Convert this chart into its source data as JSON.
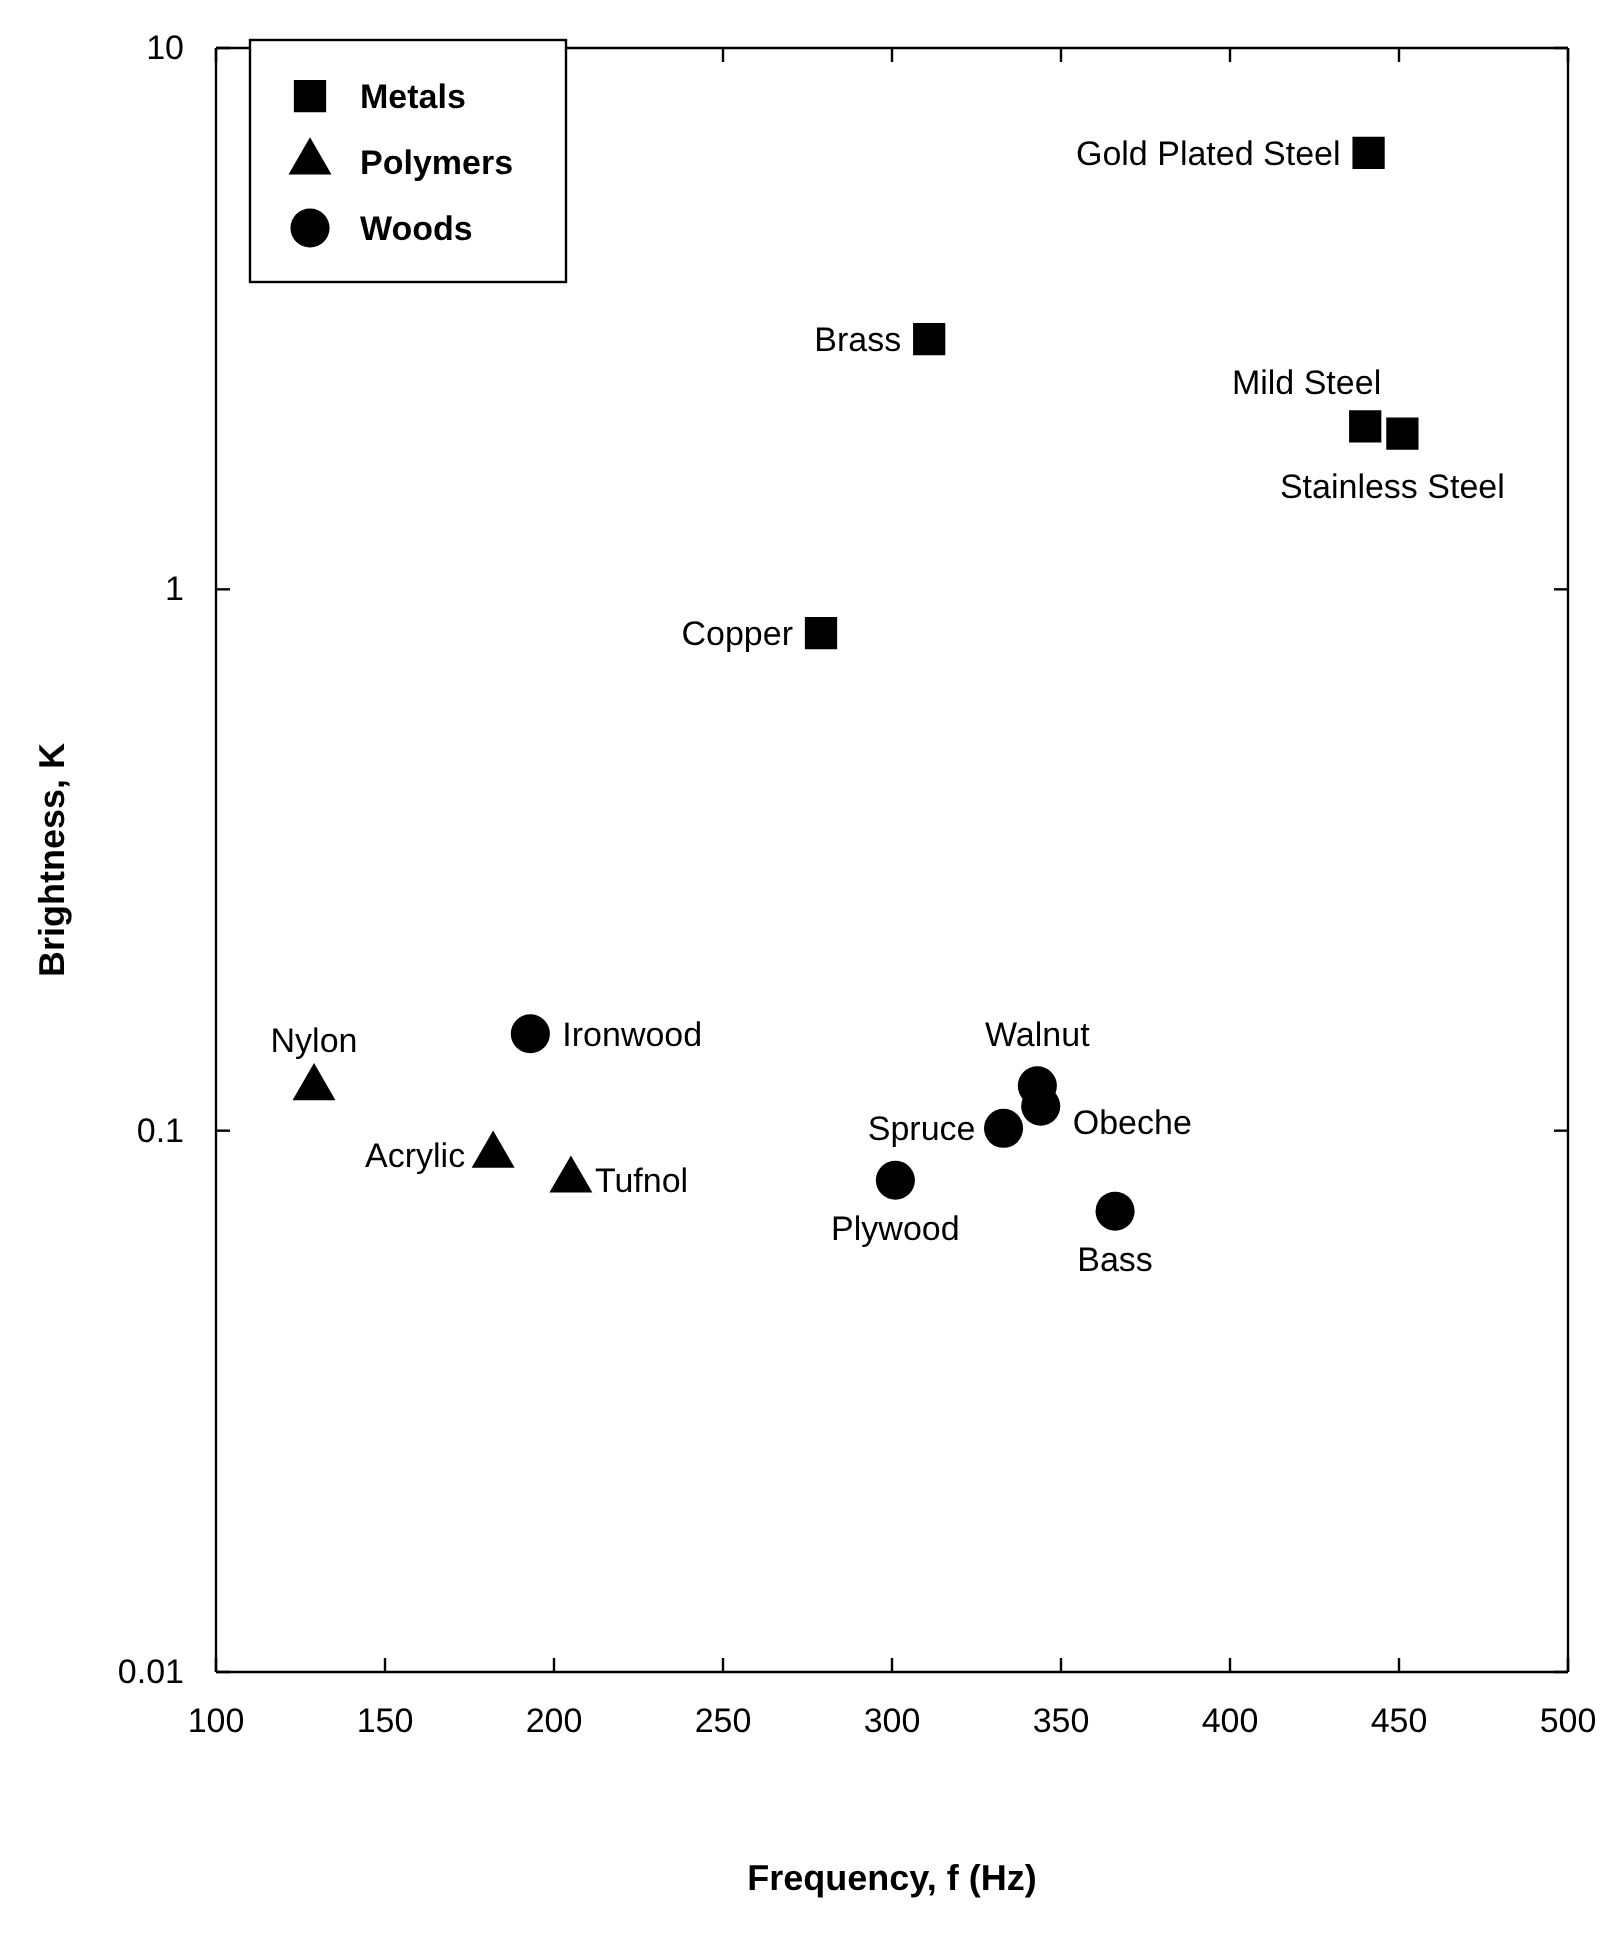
{
  "chart_data": {
    "type": "scatter",
    "xlabel": "Frequency, f (Hz)",
    "ylabel": "Brightness, K",
    "log": "y",
    "xlim": [
      100,
      500
    ],
    "xticks": [
      100,
      150,
      200,
      250,
      300,
      350,
      400,
      450,
      500
    ],
    "ylim": [
      0.01,
      10
    ],
    "yticks": [
      0.01,
      0.1,
      1,
      10
    ],
    "grid": false,
    "legend": "top left",
    "series": [
      {
        "name": "Metals",
        "color": "#000000",
        "marker": "square",
        "x": [
          441,
          311,
          440,
          451,
          279
        ],
        "values": [
          6.4,
          2.9,
          2.0,
          1.94,
          0.83
        ]
      },
      {
        "name": "Polymers",
        "color": "#000000",
        "marker": "triangle",
        "x": [
          129,
          182,
          205
        ],
        "values": [
          0.12,
          0.09,
          0.081
        ]
      },
      {
        "name": "Woods",
        "color": "#000000",
        "marker": "circle",
        "x": [
          193,
          343,
          344,
          333,
          301,
          366
        ],
        "values": [
          0.151,
          0.121,
          0.111,
          0.101,
          0.081,
          0.071
        ]
      }
    ],
    "annotations": [
      {
        "text": "Gold Plated Steel",
        "x": 441,
        "y": 6.4
      },
      {
        "text": "Brass",
        "x": 311,
        "y": 2.9
      },
      {
        "text": "Mild Steel",
        "x": 440,
        "y": 2.0
      },
      {
        "text": "Stainless Steel",
        "x": 451,
        "y": 1.94
      },
      {
        "text": "Copper",
        "x": 279,
        "y": 0.83
      },
      {
        "text": "Nylon",
        "x": 129,
        "y": 0.12
      },
      {
        "text": "Acrylic",
        "x": 182,
        "y": 0.09
      },
      {
        "text": "Tufnol",
        "x": 205,
        "y": 0.081
      },
      {
        "text": "Ironwood",
        "x": 193,
        "y": 0.151
      },
      {
        "text": "Walnut",
        "x": 343,
        "y": 0.121
      },
      {
        "text": "Obeche",
        "x": 344,
        "y": 0.111
      },
      {
        "text": "Spruce",
        "x": 333,
        "y": 0.101
      },
      {
        "text": "Plywood",
        "x": 301,
        "y": 0.081
      },
      {
        "text": "Bass",
        "x": 366,
        "y": 0.071
      }
    ]
  }
}
